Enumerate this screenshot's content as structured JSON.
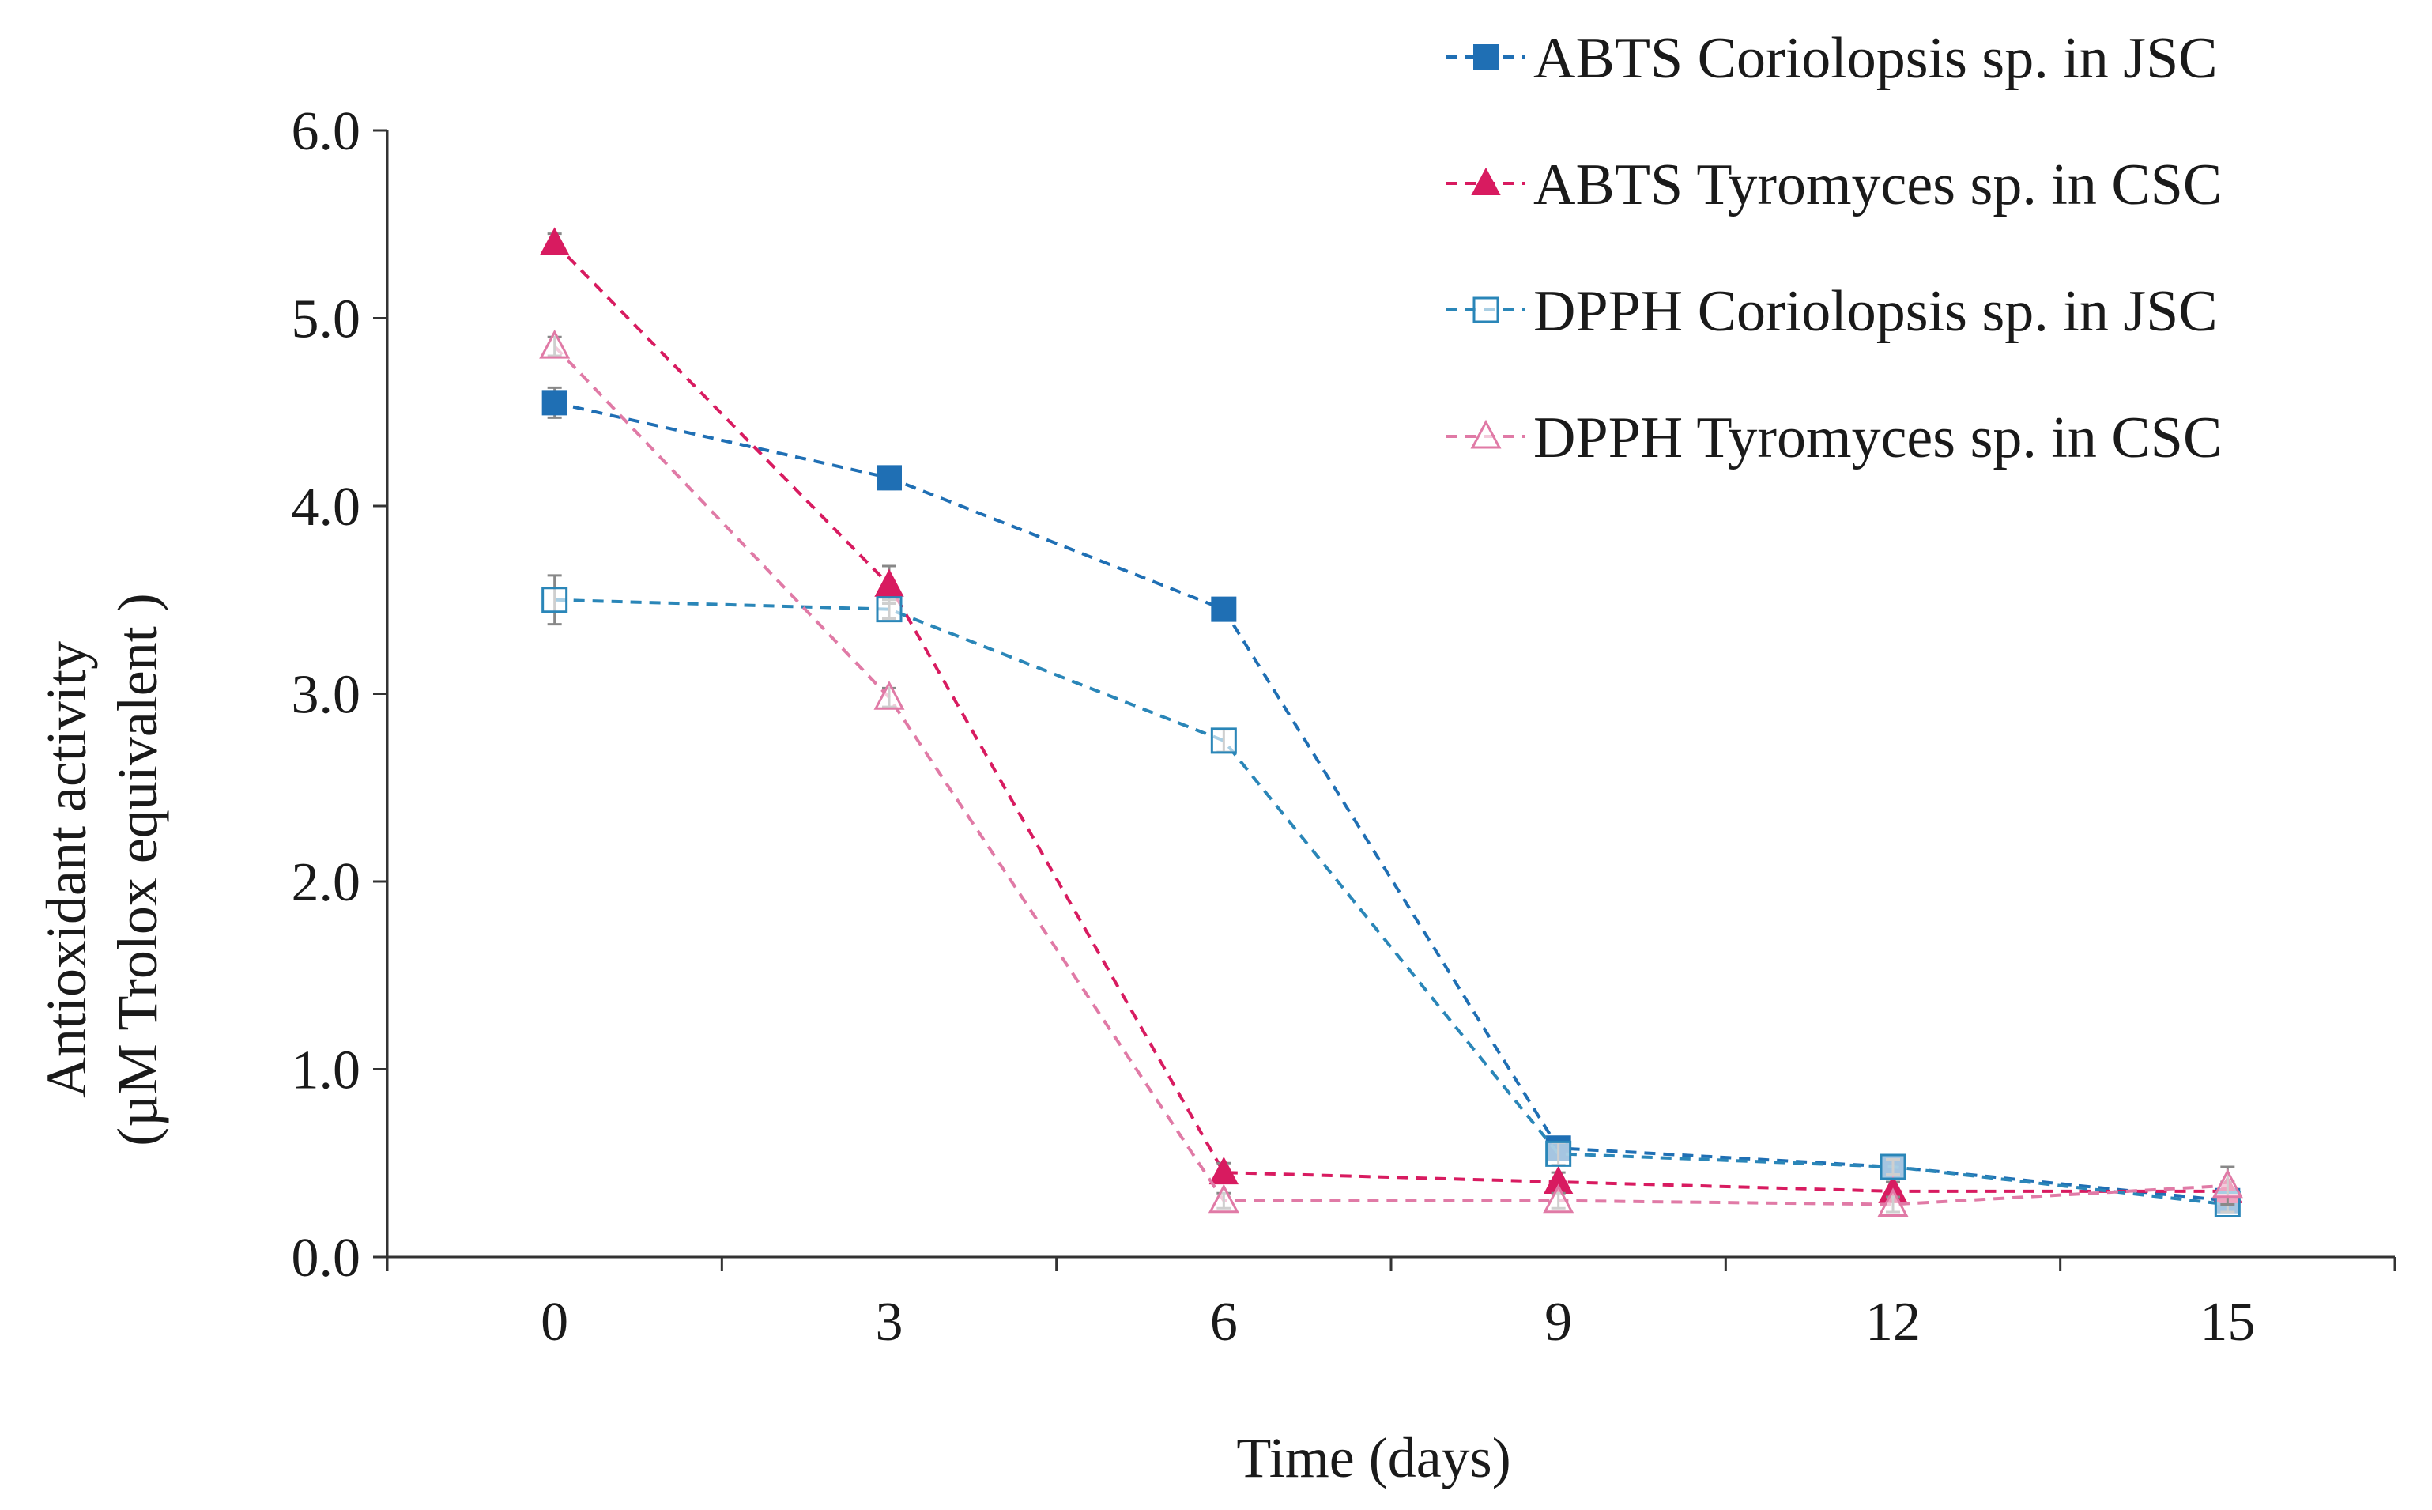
{
  "chart_data": {
    "type": "line",
    "title": "",
    "xlabel": "Time (days)",
    "ylabel_line1": "Antioxidant activity",
    "ylabel_line2": "(µM Trolox equivalent )",
    "x": [
      0,
      3,
      6,
      9,
      12,
      15
    ],
    "x_tick_labels": [
      "0",
      "3",
      "6",
      "9",
      "12",
      "15"
    ],
    "xlim": [
      -1.5,
      16.5
    ],
    "ylim": [
      0,
      6
    ],
    "y_tick_labels": [
      "0.0",
      "1.0",
      "2.0",
      "3.0",
      "4.0",
      "5.0",
      "6.0"
    ],
    "grid": false,
    "legend_position": "top-right",
    "series": [
      {
        "name": "ABTS Coriolopsis sp. in JSC",
        "color": "#1F6FB4",
        "marker": "square-filled",
        "values": [
          4.55,
          4.15,
          3.45,
          0.58,
          0.48,
          0.3
        ],
        "errors": [
          0.08,
          0.06,
          0.04,
          0.05,
          0.04,
          0.04
        ]
      },
      {
        "name": "ABTS Tyromyces sp. in CSC",
        "color": "#D81B60",
        "marker": "triangle-filled",
        "values": [
          5.4,
          3.58,
          0.45,
          0.4,
          0.35,
          0.35
        ],
        "errors": [
          0.05,
          0.1,
          0.05,
          0.05,
          0.05,
          0.05
        ]
      },
      {
        "name": "DPPH Coriolopsis sp. in JSC",
        "color": "#2A86B8",
        "marker": "square-open",
        "values": [
          3.5,
          3.45,
          2.75,
          0.55,
          0.48,
          0.28
        ],
        "errors": [
          0.13,
          0.05,
          0.06,
          0.06,
          0.04,
          0.04
        ]
      },
      {
        "name": "DPPH Tyromyces sp. in CSC",
        "color": "#E07AA6",
        "marker": "triangle-open",
        "values": [
          4.85,
          2.98,
          0.3,
          0.3,
          0.28,
          0.38
        ],
        "errors": [
          0.05,
          0.05,
          0.04,
          0.04,
          0.04,
          0.1
        ]
      }
    ]
  }
}
